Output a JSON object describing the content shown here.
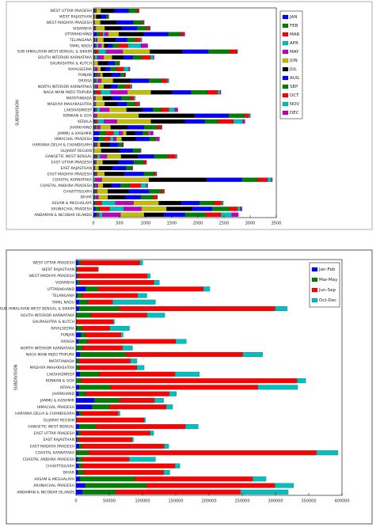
{
  "chart_data": [
    {
      "type": "bar",
      "orientation": "horizontal",
      "stacked": true,
      "ylabel": "SUBDIVISION",
      "legend": "outside right",
      "categories": [
        "WEST UTTAR PRADESH",
        "WEST RAJASTHAN",
        "WEST MADHYA PRADESH",
        "VIDARBHA",
        "UTTARAKHAND",
        "TELANGANA",
        "TAMIL NADU",
        "SUB HIMALAYAN WEST BENGAL & SIKKIM",
        "SOUTH INTERIOR KARNATAKA",
        "SAURASHTRA & KUTCH",
        "RAYALSEEMA",
        "PUNJAB",
        "ORISSA",
        "NORTH INTERIOR KARNATAKA",
        "NAGA MANI MIZO TRIPURA",
        "MATATHWADA",
        "MADHYA MAHARASHTRA",
        "LAKSHADWEEP",
        "KONKAN & GOA",
        "KERALA",
        "JHARKHAND",
        "JAMMU & KASHMIR",
        "HIMACHAL PRADESH",
        "HARYANA DELHI & CHANDIGARH",
        "GUJARAT REGION",
        "GANGETIC WEST BENGAL",
        "EAST UTTAR PRADESH",
        "EAST RAJASTHAN",
        "EAST MADHYA PRADESH",
        "COASTAL KARNATAKA",
        "COASTAL ANDHRA PRADESH",
        "CHHATTISGARH",
        "BIHAR",
        "ASSAM & MEGHALAYA",
        "ARUNACHAL PRADESH",
        "ANDAMAN & NICOBAR ISLANDS"
      ],
      "xlim": [
        0,
        3500
      ],
      "xticks": [
        0,
        500,
        1000,
        1500,
        2000,
        2500,
        3000,
        3500
      ],
      "series": [
        {
          "name": "JAN",
          "color": "#0000ff",
          "values": [
            15,
            4,
            7,
            10,
            60,
            8,
            25,
            12,
            3,
            2,
            5,
            30,
            12,
            2,
            15,
            5,
            3,
            30,
            2,
            15,
            15,
            115,
            100,
            18,
            2,
            15,
            15,
            6,
            20,
            3,
            10,
            15,
            12,
            15,
            40,
            55
          ]
        },
        {
          "name": "FEB",
          "color": "#008000",
          "values": [
            15,
            4,
            5,
            8,
            65,
            8,
            15,
            25,
            5,
            1,
            5,
            35,
            20,
            3,
            35,
            4,
            2,
            20,
            1,
            25,
            20,
            125,
            110,
            18,
            1,
            25,
            12,
            6,
            20,
            1,
            10,
            18,
            12,
            35,
            80,
            30
          ]
        },
        {
          "name": "MAR",
          "color": "#ff0000",
          "values": [
            10,
            3,
            4,
            12,
            55,
            12,
            15,
            55,
            14,
            1,
            8,
            30,
            22,
            8,
            90,
            8,
            5,
            15,
            2,
            40,
            20,
            145,
            110,
            15,
            1,
            35,
            8,
            5,
            15,
            4,
            10,
            15,
            8,
            110,
            190,
            25
          ]
        },
        {
          "name": "APR",
          "color": "#00bfbf",
          "values": [
            7,
            3,
            2,
            8,
            35,
            18,
            40,
            150,
            55,
            1,
            17,
            15,
            35,
            25,
            190,
            8,
            12,
            60,
            5,
            120,
            25,
            105,
            60,
            10,
            1,
            55,
            8,
            4,
            8,
            25,
            15,
            12,
            15,
            260,
            270,
            60
          ]
        },
        {
          "name": "MAY",
          "color": "#bf00bf",
          "values": [
            12,
            8,
            5,
            10,
            70,
            30,
            60,
            320,
            120,
            3,
            45,
            18,
            65,
            50,
            320,
            16,
            25,
            180,
            60,
            250,
            50,
            75,
            60,
            15,
            5,
            130,
            15,
            12,
            10,
            130,
            40,
            15,
            50,
            350,
            340,
            350
          ]
        },
        {
          "name": "JUN",
          "color": "#bfbf00",
          "values": [
            85,
            30,
            110,
            170,
            200,
            120,
            50,
            520,
            160,
            80,
            60,
            50,
            220,
            110,
            450,
            140,
            170,
            330,
            800,
            650,
            200,
            65,
            100,
            55,
            140,
            270,
            120,
            70,
            140,
            900,
            100,
            200,
            180,
            480,
            480,
            450
          ]
        },
        {
          "name": "JUL",
          "color": "#000000",
          "values": [
            260,
            100,
            310,
            320,
            480,
            230,
            75,
            620,
            220,
            190,
            80,
            170,
            340,
            130,
            400,
            180,
            240,
            300,
            1060,
            650,
            320,
            165,
            270,
            180,
            350,
            320,
            300,
            260,
            380,
            1100,
            160,
            400,
            340,
            430,
            490,
            380
          ]
        },
        {
          "name": "AUG",
          "color": "#0000ff",
          "values": [
            270,
            95,
            320,
            300,
            470,
            220,
            90,
            500,
            180,
            130,
            100,
            160,
            350,
            130,
            370,
            170,
            180,
            200,
            660,
            380,
            320,
            150,
            260,
            160,
            250,
            310,
            290,
            260,
            370,
            680,
            170,
            390,
            290,
            350,
            380,
            400
          ]
        },
        {
          "name": "SEP",
          "color": "#008000",
          "values": [
            160,
            40,
            170,
            180,
            230,
            160,
            110,
            400,
            170,
            80,
            120,
            80,
            240,
            150,
            310,
            180,
            160,
            160,
            300,
            250,
            250,
            80,
            110,
            80,
            140,
            270,
            200,
            110,
            190,
            300,
            180,
            230,
            240,
            280,
            330,
            400
          ]
        },
        {
          "name": "OCT",
          "color": "#ff0000",
          "values": [
            30,
            4,
            25,
            50,
            50,
            90,
            180,
            140,
            165,
            10,
            140,
            12,
            110,
            100,
            200,
            60,
            70,
            150,
            85,
            300,
            80,
            30,
            25,
            12,
            15,
            140,
            40,
            12,
            35,
            190,
            210,
            50,
            70,
            140,
            160,
            290
          ]
        },
        {
          "name": "NOV",
          "color": "#00bfbf",
          "values": [
            5,
            2,
            10,
            15,
            10,
            25,
            250,
            12,
            55,
            5,
            95,
            5,
            25,
            27,
            45,
            20,
            20,
            110,
            25,
            180,
            10,
            30,
            15,
            5,
            5,
            25,
            5,
            5,
            15,
            75,
            110,
            10,
            5,
            25,
            50,
            210
          ]
        },
        {
          "name": "DEC",
          "color": "#bf00bf",
          "values": [
            6,
            2,
            5,
            7,
            25,
            6,
            130,
            8,
            16,
            1,
            25,
            12,
            5,
            5,
            15,
            7,
            5,
            60,
            5,
            40,
            5,
            60,
            45,
            8,
            1,
            5,
            5,
            3,
            10,
            18,
            25,
            5,
            5,
            10,
            35,
            125
          ]
        }
      ]
    },
    {
      "type": "bar",
      "orientation": "horizontal",
      "stacked": true,
      "ylabel": "SUBDIVISION",
      "legend": "upper right",
      "categories": [
        "WEST UTTAR PRADESH",
        "WEST RAJASTHAN",
        "WEST MADHYA PRADESH",
        "VIDARBHA",
        "UTTARAKHAND",
        "TELANGANA",
        "TAMIL NADU",
        "SUB HIMALAYAN WEST BENGAL & SIKKIM",
        "SOUTH INTERIOR KARNATAKA",
        "SAURASHTRA & KUTCH",
        "RAYALSEEMA",
        "PUNJAB",
        "ORISSA",
        "NORTH INTERIOR KARNATAKA",
        "NAGA MANI MIZO TRIPURA",
        "MATATHWADA",
        "MADHYA MAHARASHTRA",
        "LAKSHADWEEP",
        "KONKAN & GOA",
        "KERALA",
        "JHARKHAND",
        "JAMMU & KASHMIR",
        "HIMACHAL PRADESH",
        "HARYANA DELHI & CHANDIGARH",
        "GUJARAT REGION",
        "GANGETIC WEST BENGAL",
        "EAST UTTAR PRADESH",
        "EAST RAJASTHAN",
        "EAST MADHYA PRADESH",
        "COASTAL KARNATAKA",
        "COASTAL ANDHRA PRADESH",
        "CHHATTISGARH",
        "BIHAR",
        "ASSAM & MEGHALAYA",
        "ARUNACHAL PRADESH",
        "ANDAMAN & NICOBAR ISLANDS"
      ],
      "xlim": [
        0,
        400000
      ],
      "xticks": [
        0,
        50000,
        100000,
        150000,
        200000,
        250000,
        300000,
        350000,
        400000
      ],
      "series": [
        {
          "name": "Jan-Feb",
          "color": "#0000ff",
          "values": [
            3500,
            900,
            1400,
            2100,
            14400,
            1800,
            4600,
            4300,
            900,
            300,
            1200,
            7500,
            3700,
            600,
            5800,
            1000,
            600,
            5800,
            300,
            4600,
            4000,
            27600,
            24100,
            4100,
            300,
            4600,
            3100,
            1400,
            4600,
            500,
            2300,
            3800,
            2800,
            5800,
            13800,
            9800
          ]
        },
        {
          "name": "Mar-May",
          "color": "#008000",
          "values": [
            3300,
            1600,
            1300,
            3500,
            18400,
            6900,
            13200,
            60400,
            21700,
            600,
            8000,
            7200,
            14000,
            9500,
            69000,
            3700,
            4800,
            29300,
            7700,
            47100,
            10900,
            37400,
            26400,
            4600,
            800,
            25300,
            3600,
            2400,
            3800,
            18300,
            7500,
            4800,
            8400,
            82800,
            92000,
            50000
          ]
        },
        {
          "name": "Jun-Sep",
          "color": "#ff0000",
          "values": [
            89000,
            30500,
            104600,
            111600,
            158700,
            84000,
            37400,
            234600,
            84000,
            55200,
            41400,
            52900,
            132200,
            59800,
            176000,
            77000,
            86200,
            113800,
            324300,
            221900,
            125300,
            52900,
            85100,
            54600,
            101200,
            134500,
            104600,
            80500,
            124200,
            342700,
            70100,
            140300,
            120700,
            177100,
            193200,
            187400
          ]
        },
        {
          "name": "Oct-Dec",
          "color": "#00bfbf",
          "values": [
            4700,
            900,
            4600,
            8300,
            9800,
            13900,
            64400,
            18400,
            27100,
            1800,
            29900,
            3300,
            16100,
            15200,
            29900,
            10000,
            10900,
            36800,
            13200,
            59800,
            10900,
            13800,
            9800,
            2900,
            2400,
            19500,
            5700,
            2300,
            6900,
            32500,
            39700,
            7500,
            9200,
            20100,
            28200,
            71900
          ]
        }
      ]
    }
  ]
}
